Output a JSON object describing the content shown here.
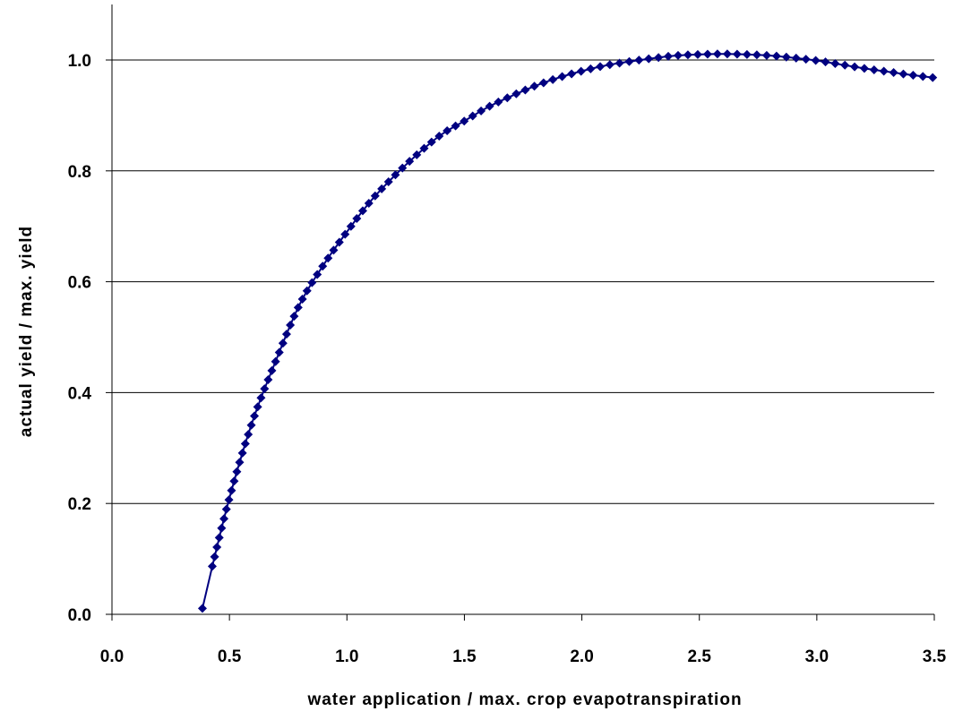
{
  "chart_data": {
    "type": "line",
    "title": "",
    "xlabel": "water application / max. crop evapotranspiration",
    "ylabel": "actual yield / max. yield",
    "xlim": [
      0.0,
      3.5
    ],
    "ylim": [
      0.0,
      1.1
    ],
    "x_ticks": [
      "0.0",
      "0.5",
      "1.0",
      "1.5",
      "2.0",
      "2.5",
      "3.0",
      "3.5"
    ],
    "y_ticks": [
      "0.0",
      "0.2",
      "0.4",
      "0.6",
      "0.8",
      "1.0"
    ],
    "grid": "horizontal major gridlines",
    "legend": "none",
    "marker": "diamond",
    "series_color": "#000080",
    "series": [
      {
        "x": [
          0.4,
          0.5,
          0.6,
          0.7,
          0.8,
          0.9,
          1.0,
          1.1,
          1.2,
          1.3,
          1.4,
          1.5,
          1.6,
          1.7,
          1.8,
          1.9,
          2.0,
          2.1,
          2.2,
          2.3,
          2.4,
          2.5,
          2.6,
          2.7,
          2.8,
          2.9,
          3.0,
          3.1,
          3.2,
          3.3,
          3.4,
          3.5
        ],
        "values": [
          0.04,
          0.21,
          0.35,
          0.46,
          0.56,
          0.63,
          0.69,
          0.745,
          0.79,
          0.83,
          0.865,
          0.89,
          0.915,
          0.935,
          0.953,
          0.968,
          0.98,
          0.99,
          0.997,
          1.003,
          1.008,
          1.01,
          1.011,
          1.01,
          1.008,
          1.004,
          0.999,
          0.992,
          0.985,
          0.979,
          0.973,
          0.968
        ]
      }
    ]
  }
}
